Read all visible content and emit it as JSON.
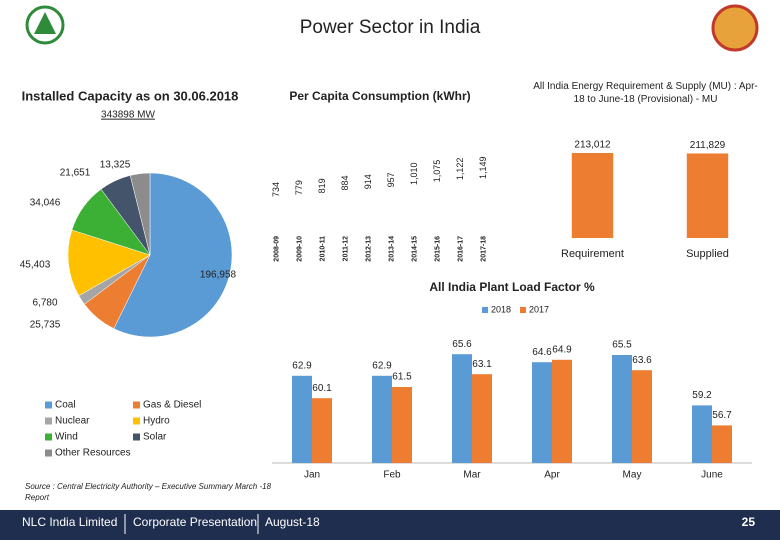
{
  "header": {
    "title": "Power Sector in India"
  },
  "chart_data": [
    {
      "type": "pie",
      "title": "Installed Capacity as on 30.06.2018",
      "subtitle": "343898 MW",
      "categories": [
        "Coal",
        "Gas & Diesel",
        "Nuclear",
        "Hydro",
        "Wind",
        "Solar",
        "Other Resources"
      ],
      "values": [
        196958,
        25735,
        6780,
        45403,
        34046,
        21651,
        13325
      ],
      "value_labels": [
        "196,958",
        "25,735",
        "6,780",
        "45,403",
        "34,046",
        "21,651",
        "13,325"
      ],
      "colors": [
        "#5b9bd5",
        "#ed7d31",
        "#a5a5a5",
        "#ffc000",
        "#3cb034",
        "#44546a",
        "#8c8c8c"
      ]
    },
    {
      "type": "bar",
      "title": "Per Capita Consumption (kWhr)",
      "categories": [
        "2008-09",
        "2009-10",
        "2010-11",
        "2011-12",
        "2012-13",
        "2013-14",
        "2014-15",
        "2015-16",
        "2016-17",
        "2017-18"
      ],
      "values": [
        734,
        779,
        819,
        884,
        914,
        957,
        1010,
        1075,
        1122,
        1149
      ],
      "value_labels": [
        "734",
        "779",
        "819",
        "884",
        "914",
        "957",
        "1,010",
        "1,075",
        "1,122",
        "1,149"
      ],
      "color": "#ffffff"
    },
    {
      "type": "bar",
      "title": "All India  Energy Requirement & Supply (MU) : Apr-18 to June-18 (Provisional) - MU",
      "categories": [
        "Requirement",
        "Supplied"
      ],
      "values": [
        213012,
        211829
      ],
      "value_labels": [
        "213,012",
        "211,829"
      ],
      "color": "#ed7d31"
    },
    {
      "type": "grouped-bar",
      "title": "All India Plant Load Factor %",
      "categories": [
        "Jan",
        "Feb",
        "Mar",
        "Apr",
        "May",
        "June"
      ],
      "series": [
        {
          "name": "2018",
          "color": "#5b9bd5",
          "values": [
            62.9,
            62.9,
            65.6,
            64.6,
            65.5,
            59.2
          ]
        },
        {
          "name": "2017",
          "color": "#ed7d31",
          "values": [
            60.1,
            61.5,
            63.1,
            64.9,
            63.6,
            56.7
          ]
        }
      ],
      "ylim": [
        52,
        67
      ]
    }
  ],
  "source": "Source : Central Electricity Authority – Executive Summary March -18 Report",
  "footer": {
    "company": "NLC India Limited",
    "presentation": "Corporate Presentation",
    "date": "August-18",
    "page": "25"
  }
}
